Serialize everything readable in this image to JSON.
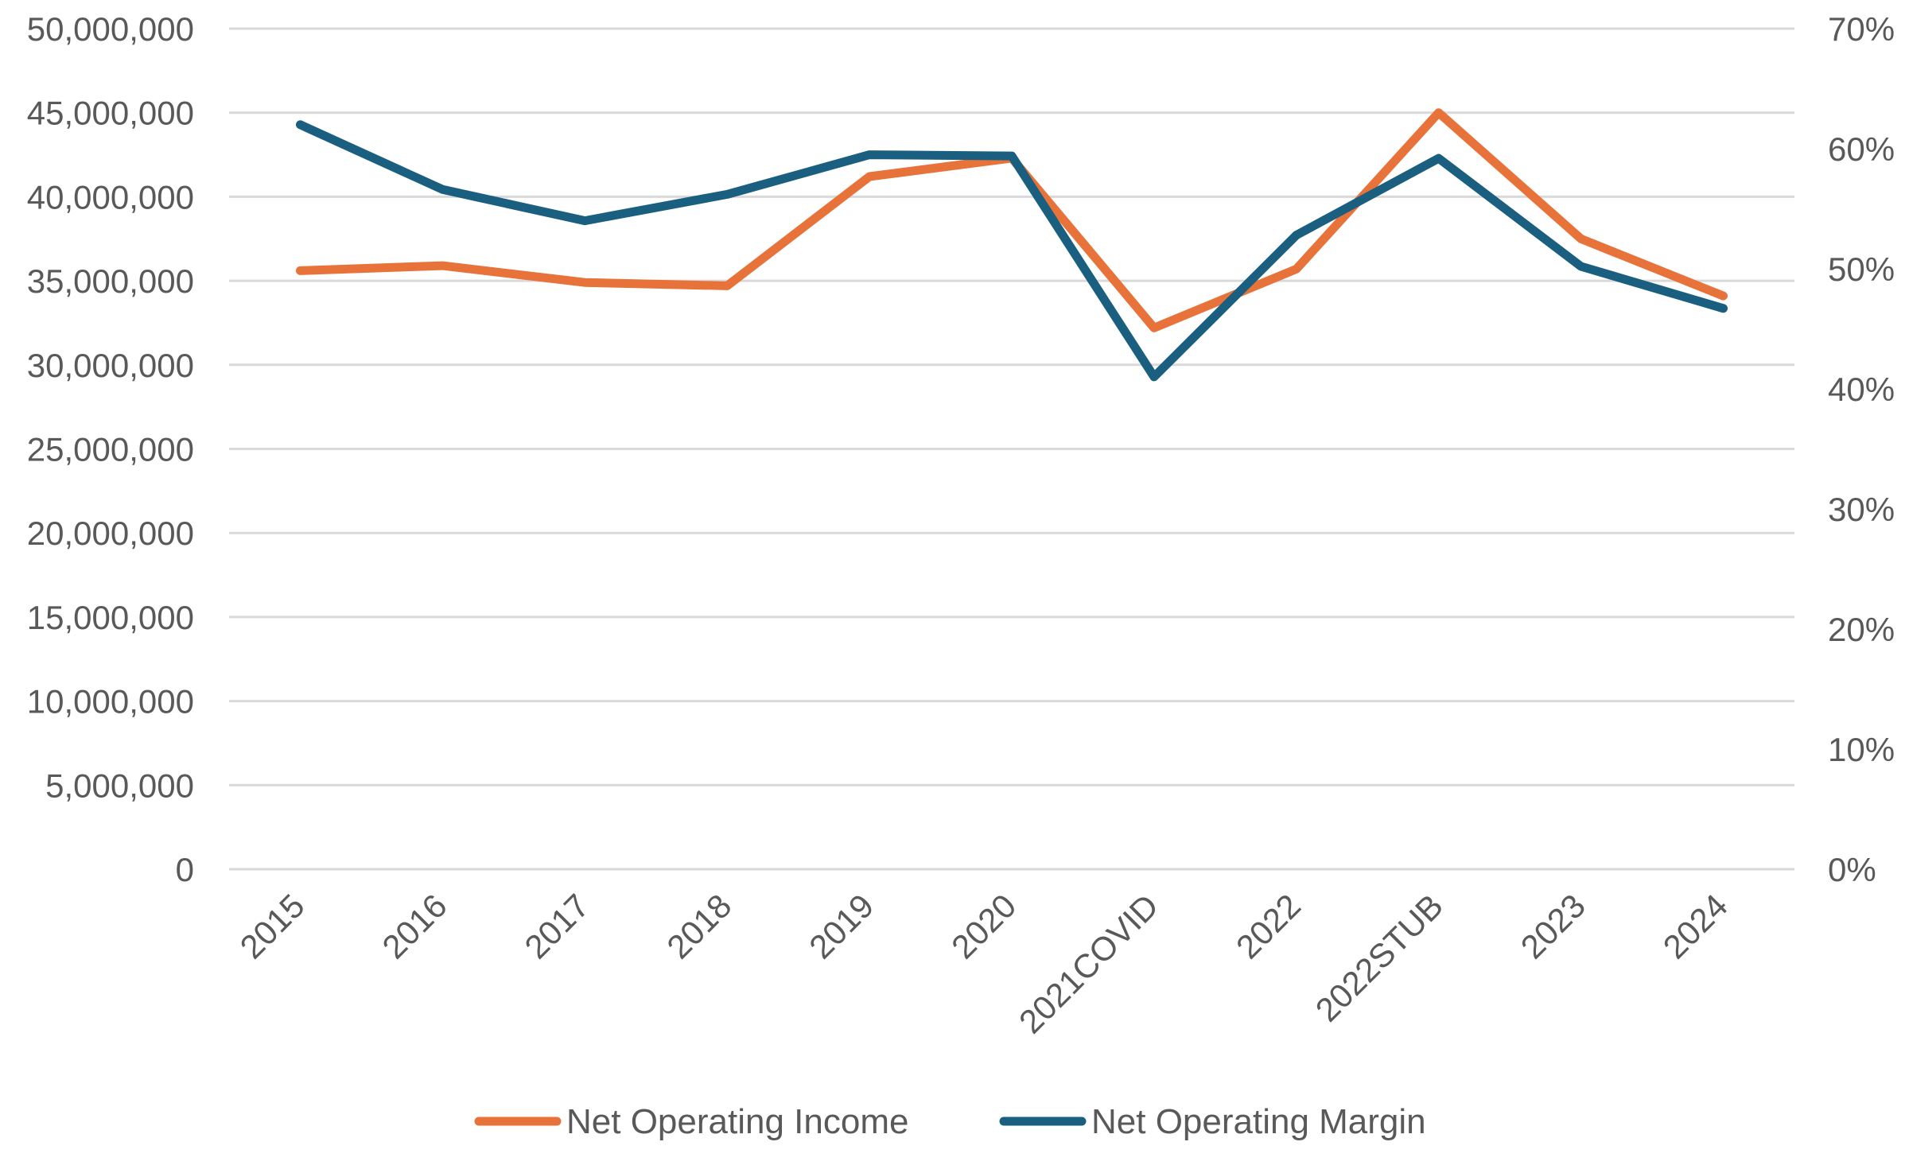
{
  "chart_data": {
    "type": "line",
    "title": "",
    "categories": [
      "2015",
      "2016",
      "2017",
      "2018",
      "2019",
      "2020",
      "2021COVID",
      "2022",
      "2022STUB",
      "2023",
      "2024"
    ],
    "left_axis": {
      "ylim": [
        0,
        50000000
      ],
      "ticks": [
        0,
        5000000,
        10000000,
        15000000,
        20000000,
        25000000,
        30000000,
        35000000,
        40000000,
        45000000,
        50000000
      ],
      "tick_labels": [
        "0",
        "5,000,000",
        "10,000,000",
        "15,000,000",
        "20,000,000",
        "25,000,000",
        "30,000,000",
        "35,000,000",
        "40,000,000",
        "45,000,000",
        "50,000,000"
      ]
    },
    "right_axis": {
      "ylim": [
        0,
        0.7
      ],
      "ticks": [
        0,
        0.1,
        0.2,
        0.3,
        0.4,
        0.5,
        0.6,
        0.7
      ],
      "tick_labels": [
        "0%",
        "10%",
        "20%",
        "30%",
        "40%",
        "50%",
        "60%",
        "70%"
      ]
    },
    "grid": true,
    "legend_position": "bottom",
    "series": [
      {
        "name": "Net Operating Income",
        "axis": "left",
        "color": "#e8733a",
        "values": [
          35600000,
          35900000,
          34900000,
          34700000,
          41200000,
          42300000,
          32200000,
          35700000,
          45000000,
          37500000,
          34100000
        ]
      },
      {
        "name": "Net Operating Margin",
        "axis": "right",
        "color": "#1a5f80",
        "values": [
          0.62,
          0.566,
          0.54,
          0.562,
          0.595,
          0.594,
          0.41,
          0.528,
          0.592,
          0.502,
          0.467
        ]
      }
    ]
  }
}
